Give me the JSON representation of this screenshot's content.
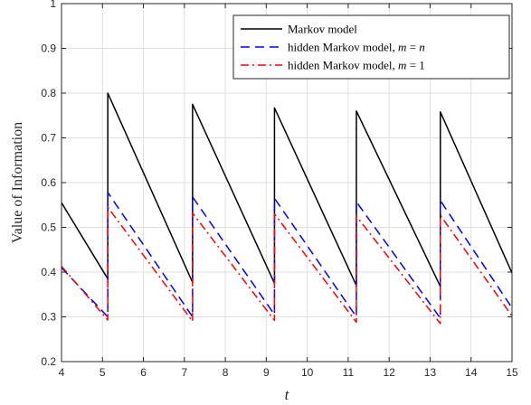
{
  "chart_data": {
    "type": "line",
    "title": "",
    "xlabel": "t",
    "ylabel": "Value of Information",
    "xlim": [
      4,
      15
    ],
    "ylim": [
      0.2,
      1
    ],
    "xticks": [
      "4",
      "5",
      "6",
      "7",
      "8",
      "9",
      "10",
      "11",
      "12",
      "13",
      "14",
      "15"
    ],
    "yticks": [
      "0.2",
      "0.3",
      "0.4",
      "0.5",
      "0.6",
      "0.7",
      "0.8",
      "0.9",
      "1"
    ],
    "grid": true,
    "legend_position": "top-right",
    "series": [
      {
        "name": "Markov model",
        "color": "#000000",
        "style": "solid",
        "points": [
          [
            4.0,
            0.555
          ],
          [
            5.13,
            0.385
          ],
          [
            5.13,
            0.8
          ],
          [
            7.2,
            0.377
          ],
          [
            7.2,
            0.775
          ],
          [
            9.2,
            0.375
          ],
          [
            9.2,
            0.767
          ],
          [
            11.2,
            0.37
          ],
          [
            11.2,
            0.76
          ],
          [
            13.25,
            0.368
          ],
          [
            13.25,
            0.758
          ],
          [
            15.0,
            0.398
          ]
        ]
      },
      {
        "name": "hidden Markov model, m = n",
        "color": "#0000ff",
        "style": "dashed",
        "points": [
          [
            4.0,
            0.41
          ],
          [
            5.13,
            0.3
          ],
          [
            5.13,
            0.578
          ],
          [
            7.2,
            0.3
          ],
          [
            7.2,
            0.568
          ],
          [
            9.2,
            0.305
          ],
          [
            9.2,
            0.565
          ],
          [
            11.2,
            0.3
          ],
          [
            11.2,
            0.557
          ],
          [
            13.25,
            0.297
          ],
          [
            13.25,
            0.56
          ],
          [
            15.0,
            0.32
          ]
        ]
      },
      {
        "name": "hidden Markov model, m = 1",
        "color": "#ff0000",
        "style": "dashdot",
        "points": [
          [
            4.0,
            0.413
          ],
          [
            5.13,
            0.293
          ],
          [
            5.13,
            0.545
          ],
          [
            7.2,
            0.29
          ],
          [
            7.2,
            0.532
          ],
          [
            9.2,
            0.292
          ],
          [
            9.2,
            0.53
          ],
          [
            11.2,
            0.288
          ],
          [
            11.2,
            0.525
          ],
          [
            13.25,
            0.285
          ],
          [
            13.25,
            0.527
          ],
          [
            15.0,
            0.302
          ]
        ]
      }
    ]
  }
}
